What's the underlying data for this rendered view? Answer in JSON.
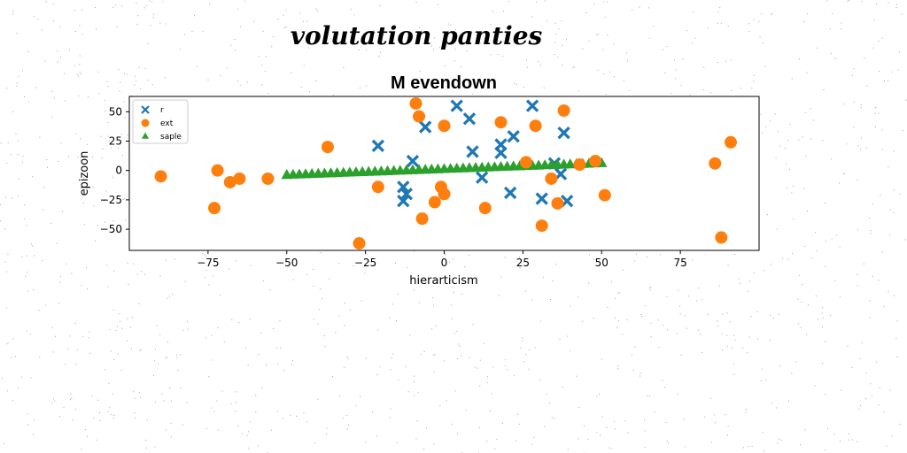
{
  "chart_data": {
    "type": "scatter",
    "suptitle": "volutation panties",
    "title": "M evendown",
    "xlabel": "hierarticism",
    "ylabel": "epizoon",
    "xlim": [
      -100,
      100
    ],
    "ylim": [
      -68,
      63
    ],
    "xticks": [
      -75,
      -50,
      -25,
      0,
      25,
      50,
      75
    ],
    "yticks": [
      -50,
      -25,
      0,
      25,
      50
    ],
    "grid": false,
    "legend_position": "upper-left",
    "series": [
      {
        "name": "r",
        "marker": "x",
        "color": "#1f77b4",
        "x": [
          -21,
          -10,
          -6,
          4,
          8,
          9,
          12,
          18,
          18,
          21,
          22,
          28,
          31,
          35,
          37,
          38,
          39,
          -13,
          -12,
          -13
        ],
        "y": [
          21,
          8,
          37,
          55,
          44,
          16,
          -6,
          22,
          15,
          -19,
          29,
          55,
          -24,
          6,
          -3,
          32,
          -26,
          -14,
          -20,
          -26
        ]
      },
      {
        "name": "ext",
        "color": "#ff7f0e",
        "marker": "o",
        "x": [
          -90,
          -72,
          -73,
          -68,
          -65,
          -56,
          -37,
          -27,
          -21,
          -9,
          -8,
          -7,
          -3,
          -1,
          0,
          0,
          13,
          18,
          26,
          29,
          31,
          34,
          36,
          38,
          43,
          48,
          51,
          86,
          88,
          91
        ],
        "y": [
          -5,
          0,
          -32,
          -10,
          -7,
          -7,
          20,
          -62,
          -14,
          57,
          46,
          -41,
          -27,
          -14,
          -20,
          38,
          -32,
          41,
          7,
          38,
          -47,
          -7,
          -28,
          51,
          5,
          8,
          -21,
          6,
          -57,
          24
        ]
      },
      {
        "name": "saple",
        "color": "#2ca02c",
        "marker": "^",
        "x": [
          -50,
          -48,
          -46,
          -44,
          -42,
          -40,
          -38,
          -36,
          -34,
          -32,
          -30,
          -28,
          -26,
          -24,
          -22,
          -20,
          -18,
          -16,
          -14,
          -12,
          -10,
          -8,
          -6,
          -4,
          -2,
          0,
          2,
          4,
          6,
          8,
          10,
          12,
          14,
          16,
          18,
          20,
          22,
          24,
          26,
          28,
          30,
          32,
          34,
          36,
          38,
          40,
          42,
          44,
          46,
          48,
          50
        ],
        "y": [
          -4,
          -3.8,
          -3.6,
          -3.4,
          -3.2,
          -3,
          -2.8,
          -2.6,
          -2.4,
          -2.2,
          -2,
          -1.8,
          -1.6,
          -1.4,
          -1.2,
          -1,
          -0.8,
          -0.6,
          -0.4,
          -0.2,
          0,
          0.2,
          0.4,
          0.6,
          0.8,
          1,
          1.2,
          1.4,
          1.6,
          1.8,
          2,
          2.2,
          2.4,
          2.6,
          2.8,
          3,
          3.2,
          3.4,
          3.6,
          3.8,
          4,
          4.2,
          4.4,
          4.6,
          4.8,
          5,
          5.2,
          5.4,
          5.6,
          5.8,
          6
        ]
      }
    ]
  }
}
